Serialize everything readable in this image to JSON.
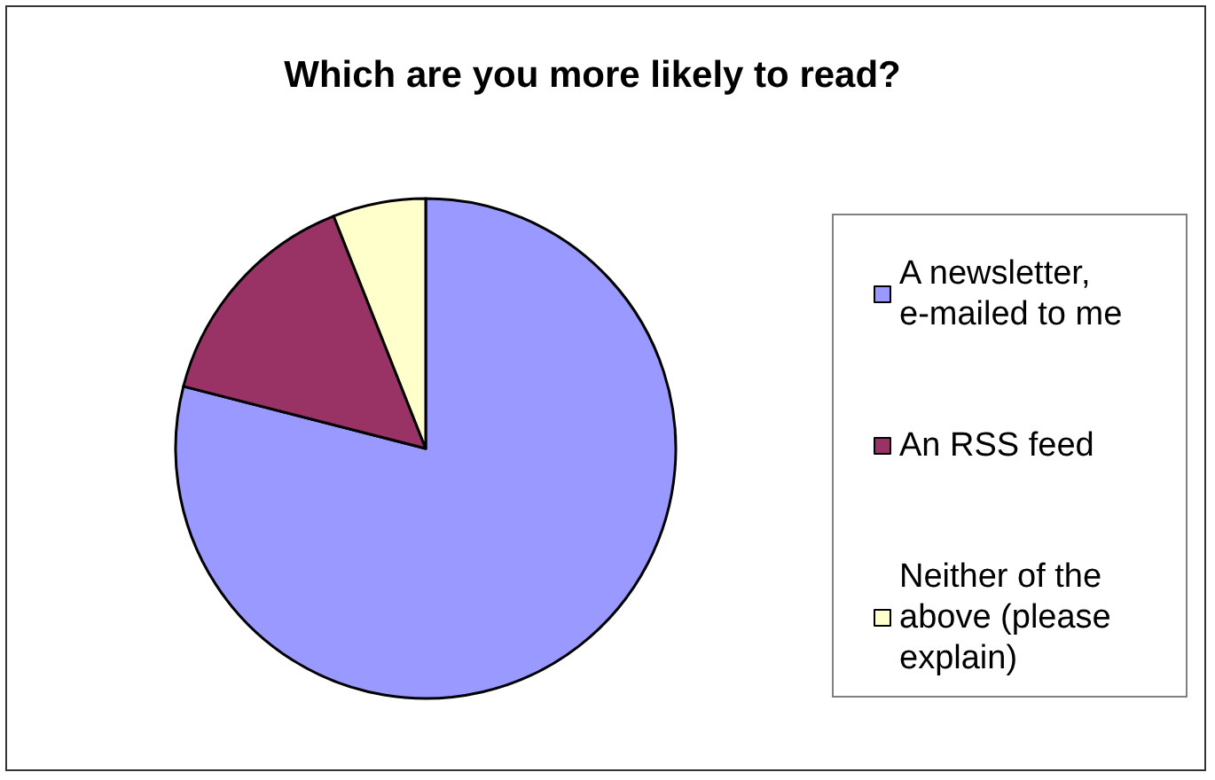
{
  "chart_data": {
    "type": "pie",
    "title": "Which are you more likely to read?",
    "categories": [
      "A newsletter, e-mailed to me",
      "An RSS feed",
      "Neither of the above (please explain)"
    ],
    "values": [
      79,
      15,
      6
    ],
    "colors": [
      "#9999ff",
      "#993366",
      "#ffffcc"
    ],
    "legend": "right"
  }
}
